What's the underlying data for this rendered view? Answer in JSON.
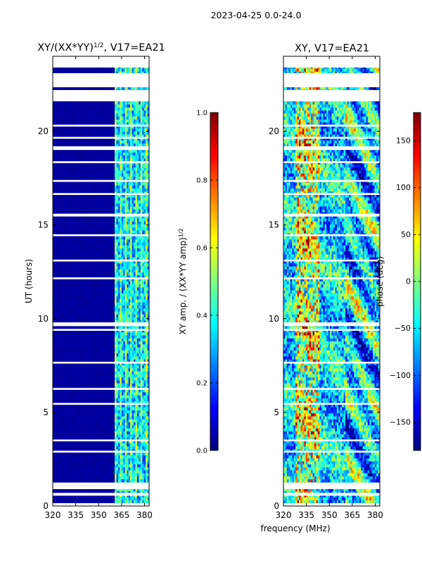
{
  "suptitle": "2023-04-25 0.0-24.0",
  "shared_xlabel": "frequency (MHz)",
  "colors": {
    "jet": [
      "#00007f",
      "#0000ff",
      "#007fff",
      "#00ffff",
      "#7fff7f",
      "#ffff00",
      "#ff7f00",
      "#ff0000",
      "#7f0000"
    ],
    "background": "#ffffff"
  },
  "chart_data": [
    {
      "type": "heatmap",
      "title_main": "XY/(XX*YY)",
      "title_sup": "1/2",
      "title_rest": ", V17=EA21",
      "xlabel": "",
      "ylabel": "UT (hours)",
      "xlim": [
        320,
        383
      ],
      "ylim": [
        0,
        24
      ],
      "xticks": [
        "320",
        "335",
        "350",
        "365",
        "380"
      ],
      "xtick_values": [
        320,
        335,
        350,
        365,
        380
      ],
      "yticks": [
        "0",
        "5",
        "10",
        "15",
        "20"
      ],
      "ytick_values": [
        0,
        5,
        10,
        15,
        20
      ],
      "color_scale": "jet",
      "clim": [
        0,
        1
      ],
      "typical_value_low_band": 0.02,
      "typical_value_high_band": 0.35,
      "high_band_start_mhz": 361,
      "data_gaps_hours": [
        [
          0.0,
          0.15
        ],
        [
          0.55,
          0.7
        ],
        [
          0.9,
          1.1
        ],
        [
          1.1,
          1.25
        ],
        [
          2.85,
          2.95
        ],
        [
          3.45,
          3.55
        ],
        [
          5.4,
          5.5
        ],
        [
          6.2,
          6.3
        ],
        [
          7.6,
          7.7
        ],
        [
          9.35,
          9.45
        ],
        [
          9.6,
          9.8
        ],
        [
          12.1,
          12.2
        ],
        [
          13.05,
          13.15
        ],
        [
          14.4,
          14.5
        ],
        [
          15.45,
          15.6
        ],
        [
          16.6,
          16.7
        ],
        [
          17.3,
          17.4
        ],
        [
          18.3,
          18.4
        ],
        [
          19.0,
          19.2
        ],
        [
          19.6,
          19.7
        ],
        [
          20.25,
          20.35
        ],
        [
          21.6,
          22.2
        ],
        [
          22.35,
          23.1
        ],
        [
          23.4,
          24.0
        ]
      ],
      "colorbar": {
        "label_main": "XY amp. / (XX*YY amp)",
        "label_sup": "1/2",
        "ticks": [
          "0.0",
          "0.2",
          "0.4",
          "0.6",
          "0.8",
          "1.0"
        ],
        "tick_values": [
          0.0,
          0.2,
          0.4,
          0.6,
          0.8,
          1.0
        ],
        "range": [
          0,
          1
        ]
      }
    },
    {
      "type": "heatmap",
      "title_main": "XY, V17=EA21",
      "xlabel": "frequency (MHz)",
      "ylabel": "",
      "xlim": [
        320,
        383
      ],
      "ylim": [
        0,
        24
      ],
      "xticks": [
        "320",
        "335",
        "350",
        "365",
        "380"
      ],
      "xtick_values": [
        320,
        335,
        350,
        365,
        380
      ],
      "yticks": [
        "0",
        "5",
        "10",
        "15",
        "20"
      ],
      "ytick_values": [
        0,
        5,
        10,
        15,
        20
      ],
      "color_scale": "jet",
      "clim": [
        -180,
        180
      ],
      "data_gaps_hours": [
        [
          0.0,
          0.15
        ],
        [
          0.55,
          0.7
        ],
        [
          0.9,
          1.1
        ],
        [
          1.1,
          1.25
        ],
        [
          2.85,
          2.95
        ],
        [
          3.45,
          3.55
        ],
        [
          5.4,
          5.5
        ],
        [
          6.2,
          6.3
        ],
        [
          7.6,
          7.7
        ],
        [
          9.35,
          9.45
        ],
        [
          9.6,
          9.8
        ],
        [
          12.1,
          12.2
        ],
        [
          13.05,
          13.15
        ],
        [
          14.4,
          14.5
        ],
        [
          15.45,
          15.6
        ],
        [
          16.6,
          16.7
        ],
        [
          17.3,
          17.4
        ],
        [
          18.3,
          18.4
        ],
        [
          19.0,
          19.2
        ],
        [
          19.6,
          19.7
        ],
        [
          20.25,
          20.35
        ],
        [
          21.6,
          22.2
        ],
        [
          22.35,
          23.1
        ],
        [
          23.4,
          24.0
        ]
      ],
      "colorbar": {
        "label": "phase (deg)",
        "ticks": [
          "−150",
          "−100",
          "−50",
          "0",
          "50",
          "100",
          "150"
        ],
        "tick_values": [
          -150,
          -100,
          -50,
          0,
          50,
          100,
          150
        ],
        "range": [
          -180,
          180
        ]
      }
    }
  ]
}
